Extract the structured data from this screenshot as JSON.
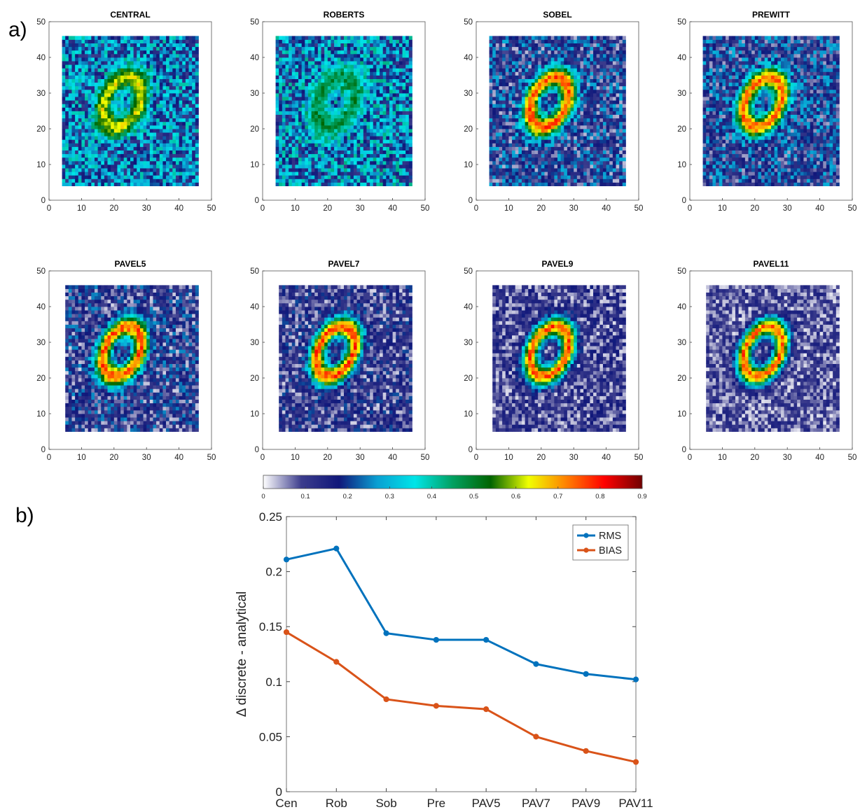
{
  "panel_labels": {
    "a": "a)",
    "b": "b)"
  },
  "chart_data": [
    {
      "type": "heatmap",
      "panel": "a",
      "titles": [
        "CENTRAL",
        "ROBERTS",
        "SOBEL",
        "PREWITT",
        "PAVEL5",
        "PAVEL7",
        "PAVEL9",
        "PAVEL11"
      ],
      "xlim": [
        0,
        50
      ],
      "ylim": [
        0,
        50
      ],
      "xticks": [
        "0",
        "10",
        "20",
        "30",
        "40",
        "50"
      ],
      "yticks": [
        "0",
        "10",
        "20",
        "30",
        "40",
        "50"
      ],
      "grid": false,
      "colorbar": {
        "min": 0,
        "max": 0.9,
        "ticks": [
          "0",
          "0.1",
          "0.2",
          "0.3",
          "0.4",
          "0.5",
          "0.6",
          "0.7",
          "0.8",
          "0.9"
        ],
        "colors": [
          "#ffffff",
          "#3c3d8d",
          "#10177a",
          "#0a9fd2",
          "#00e5e8",
          "#00a060",
          "#006400",
          "#f0ff00",
          "#ff8000",
          "#ff0000",
          "#700000"
        ]
      }
    },
    {
      "type": "line",
      "panel": "b",
      "categories": [
        "Cen",
        "Rob",
        "Sob",
        "Pre",
        "PAV5",
        "PAV7",
        "PAV9",
        "PAV11"
      ],
      "ylabel": "Δ discrete - analytical",
      "ylim": [
        0,
        0.25
      ],
      "yticks": [
        "0",
        "0.05",
        "0.1",
        "0.15",
        "0.2",
        "0.25"
      ],
      "legend_position": "top-right",
      "grid": false,
      "series": [
        {
          "name": "RMS",
          "color": "#0072bd",
          "values": [
            0.211,
            0.221,
            0.144,
            0.138,
            0.138,
            0.116,
            0.107,
            0.102
          ]
        },
        {
          "name": "BIAS",
          "color": "#d95319",
          "values": [
            0.145,
            0.118,
            0.084,
            0.078,
            0.075,
            0.05,
            0.037,
            0.027
          ]
        }
      ]
    }
  ]
}
